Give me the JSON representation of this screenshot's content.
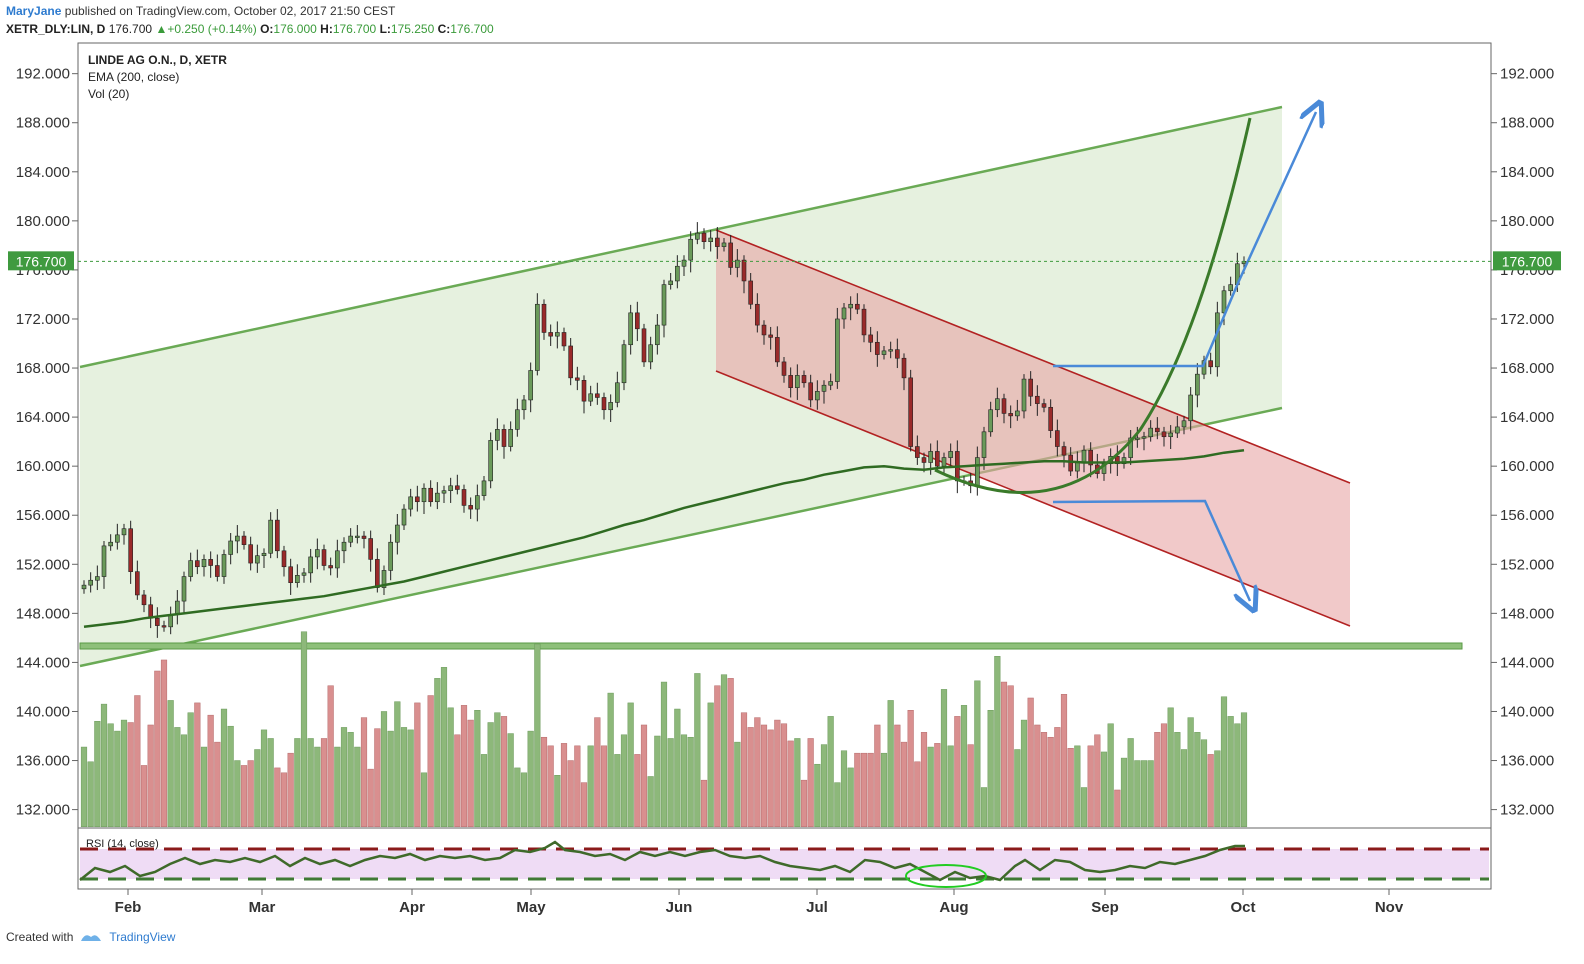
{
  "header": {
    "author": "MaryJane",
    "published_text": " published on TradingView.com, October 02, 2017 21:50 CEST"
  },
  "ohlc_bar": {
    "symbol": "XETR_DLY:LIN, D",
    "last": "176.700",
    "change": "+0.250 (+0.14%)",
    "o_label": "O:",
    "o": "176.000",
    "h_label": "H:",
    "h": "176.700",
    "l_label": "L:",
    "l": "175.250",
    "c_label": "C:",
    "c": "176.700"
  },
  "legend": {
    "title": "LINDE AG O.N., D, XETR",
    "line2": "EMA (200, close)",
    "line3": "Vol (20)"
  },
  "rsi_label": "RSI (14, close)",
  "footer": {
    "created": "Created with",
    "brand": "TradingView"
  },
  "colors": {
    "up": "#6a9a5a",
    "down": "#9a2a2a",
    "channel_green": "#6aaa55",
    "channel_red": "#b22222",
    "arrow_blue": "#4a8ad8",
    "ema": "#2f6b22",
    "price_label_bg": "#3f9a3f"
  },
  "chart_data": {
    "type": "candlestick",
    "ylim": [
      130.5,
      194.5
    ],
    "y_ticks": [
      "192.000",
      "188.000",
      "184.000",
      "180.000",
      "176.000",
      "172.000",
      "168.000",
      "164.000",
      "160.000",
      "156.000",
      "152.000",
      "148.000",
      "144.000",
      "140.000",
      "136.000",
      "132.000"
    ],
    "x_months": [
      "Feb",
      "Mar",
      "Apr",
      "May",
      "Jun",
      "Jul",
      "Aug",
      "Sep",
      "Oct",
      "Nov"
    ],
    "last_price_label": "176.700",
    "last_price": 176.7,
    "closes": [
      150.3,
      150.7,
      151.0,
      153.5,
      153.8,
      154.4,
      154.9,
      151.4,
      149.5,
      148.7,
      147.6,
      147.0,
      146.9,
      147.9,
      149.0,
      151.0,
      152.3,
      151.8,
      152.4,
      151.9,
      151.0,
      152.8,
      153.9,
      154.3,
      153.6,
      152.1,
      152.7,
      152.9,
      155.6,
      153.1,
      151.8,
      150.5,
      151.1,
      151.3,
      152.6,
      153.2,
      151.9,
      151.7,
      153.1,
      153.8,
      154.3,
      154.3,
      154.1,
      152.4,
      150.1,
      151.5,
      153.8,
      155.2,
      156.5,
      157.5,
      157.1,
      158.2,
      157.1,
      157.8,
      158.0,
      158.4,
      158.1,
      156.8,
      156.5,
      157.6,
      158.8,
      162.1,
      163.0,
      161.6,
      163.0,
      164.6,
      165.4,
      167.8,
      173.2,
      170.9,
      170.6,
      170.9,
      169.8,
      167.2,
      167.0,
      165.3,
      165.9,
      165.6,
      164.6,
      165.2,
      166.8,
      169.9,
      172.5,
      171.2,
      168.5,
      169.9,
      171.5,
      174.8,
      175.1,
      176.3,
      176.8,
      178.5,
      179.0,
      178.3,
      178.6,
      177.9,
      178.2,
      176.2,
      176.8,
      175.1,
      173.2,
      171.5,
      170.7,
      170.5,
      168.5,
      167.4,
      166.4,
      167.4,
      166.8,
      165.4,
      166.1,
      166.6,
      166.9,
      172.0,
      172.9,
      173.2,
      172.8,
      170.7,
      170.1,
      169.1,
      169.4,
      169.5,
      168.8,
      167.2,
      161.6,
      160.7,
      160.3,
      161.2,
      160.0,
      160.7,
      161.2,
      158.8,
      158.8,
      158.4,
      160.7,
      162.8,
      164.6,
      165.5,
      164.3,
      164.1,
      164.5,
      167.1,
      165.7,
      165.1,
      164.8,
      162.9,
      161.6,
      160.9,
      159.6,
      160.3,
      161.3,
      160.1,
      159.4,
      160.2,
      160.8,
      160.2,
      160.7,
      162.3,
      162.3,
      162.4,
      163.1,
      162.8,
      162.4,
      162.7,
      163.2,
      163.7,
      165.8,
      167.5,
      168.6,
      168.1,
      172.5,
      174.3,
      174.8,
      176.5,
      176.7
    ],
    "ema200": [
      146.9,
      147.1,
      147.3,
      147.6,
      147.8,
      148.0,
      148.2,
      148.4,
      148.6,
      148.8,
      149.0,
      149.2,
      149.4,
      149.7,
      150.0,
      150.3,
      150.6,
      151.0,
      151.4,
      151.8,
      152.2,
      152.6,
      153.0,
      153.4,
      153.8,
      154.2,
      154.7,
      155.2,
      155.6,
      156.1,
      156.6,
      157.0,
      157.4,
      157.8,
      158.2,
      158.6,
      158.9,
      159.3,
      159.6,
      159.9,
      160.0,
      159.8,
      159.7,
      159.9,
      160.0,
      160.1,
      160.2,
      160.3,
      160.4,
      160.4,
      160.3,
      160.3,
      160.3,
      160.4,
      160.5,
      160.6,
      160.8,
      161.1,
      161.3
    ],
    "volume_tops": [
      138.3,
      135.9,
      138.0,
      141.2,
      138.4,
      139.6,
      139.3,
      137.9,
      141.9,
      135.0,
      140.1,
      143.3,
      143.0,
      141.5,
      138.1,
      139.3,
      139.9,
      139.5,
      137.7,
      139.1,
      138.7,
      140.2,
      137.6,
      136.6,
      135.0,
      137.2,
      136.9,
      137.3,
      138.4,
      134.8,
      136.2,
      136.6,
      136.6,
      135.4,
      137.2,
      138.3,
      137.8,
      140.9,
      137.7,
      138.1,
      139.5,
      137.1
    ],
    "annotations": [
      {
        "type": "ascending_channel",
        "color": "green"
      },
      {
        "type": "descending_channel",
        "color": "red"
      },
      {
        "type": "horizontal_support",
        "value": 145.7
      },
      {
        "type": "projection_arrow_up",
        "target": 190.0
      },
      {
        "type": "projection_arrow_down",
        "target": 149.0
      },
      {
        "type": "rounded_bottom_curve"
      }
    ]
  }
}
